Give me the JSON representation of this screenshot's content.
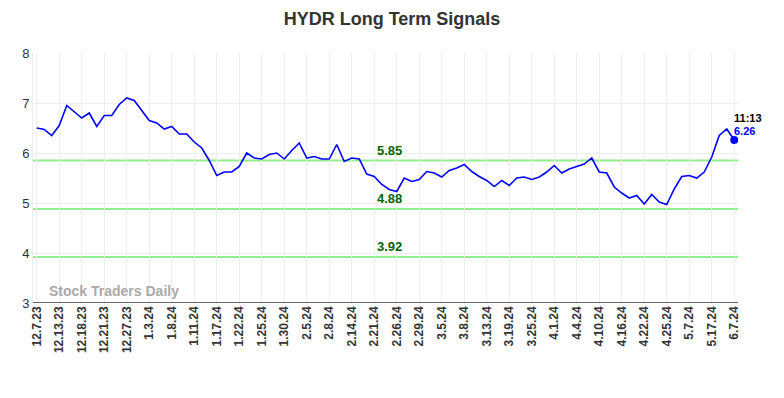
{
  "chart_data": {
    "type": "line",
    "title": "HYDR Long Term Signals",
    "watermark": "Stock Traders Daily",
    "color": "#0000ff",
    "grid": true,
    "categories": [
      "12.7.23",
      null,
      null,
      "12.13.23",
      null,
      null,
      "12.18.23",
      null,
      null,
      "12.21.23",
      null,
      null,
      "12.27.23",
      null,
      null,
      "1.3.24",
      null,
      null,
      "1.8.24",
      null,
      null,
      "1.11.24",
      null,
      null,
      "1.17.24",
      null,
      null,
      "1.22.24",
      null,
      null,
      "1.25.24",
      null,
      null,
      "1.30.24",
      null,
      null,
      "2.5.24",
      null,
      null,
      "2.8.24",
      null,
      null,
      "2.14.24",
      null,
      null,
      "2.21.24",
      null,
      null,
      "2.26.24",
      null,
      null,
      "2.29.24",
      null,
      null,
      "3.5.24",
      null,
      null,
      "3.8.24",
      null,
      null,
      "3.13.24",
      null,
      null,
      "3.19.24",
      null,
      null,
      "3.25.24",
      null,
      null,
      "4.1.24",
      null,
      null,
      "4.4.24",
      null,
      null,
      "4.10.24",
      null,
      null,
      "4.16.24",
      null,
      null,
      "4.22.24",
      null,
      null,
      "4.25.24",
      null,
      null,
      "5.7.24",
      null,
      null,
      "5.17.24",
      null,
      null,
      "6.7.24"
    ],
    "values": [
      6.5,
      6.47,
      6.35,
      6.55,
      6.95,
      6.82,
      6.7,
      6.8,
      6.53,
      6.75,
      6.75,
      6.97,
      7.1,
      7.05,
      6.85,
      6.65,
      6.6,
      6.48,
      6.53,
      6.38,
      6.38,
      6.22,
      6.1,
      5.85,
      5.55,
      5.62,
      5.62,
      5.73,
      6.0,
      5.9,
      5.88,
      5.97,
      6.0,
      5.88,
      6.05,
      6.2,
      5.9,
      5.93,
      5.88,
      5.88,
      6.17,
      5.83,
      5.9,
      5.88,
      5.58,
      5.53,
      5.37,
      5.27,
      5.23,
      5.5,
      5.43,
      5.47,
      5.63,
      5.6,
      5.52,
      5.65,
      5.7,
      5.77,
      5.63,
      5.53,
      5.45,
      5.33,
      5.45,
      5.35,
      5.5,
      5.52,
      5.47,
      5.52,
      5.62,
      5.75,
      5.6,
      5.68,
      5.73,
      5.78,
      5.9,
      5.62,
      5.6,
      5.32,
      5.2,
      5.1,
      5.15,
      4.98,
      5.17,
      5.02,
      4.97,
      5.28,
      5.53,
      5.55,
      5.5,
      5.62,
      5.92,
      6.35,
      6.48,
      6.26
    ],
    "ylim": [
      3,
      8
    ],
    "yticks": [
      3,
      4,
      5,
      6,
      7,
      8
    ],
    "levels": [
      5.85,
      4.88,
      3.92
    ],
    "level_color": "#90ee90",
    "level_label_color": "#006400",
    "annotations": [
      "11:13",
      "6.26"
    ]
  }
}
